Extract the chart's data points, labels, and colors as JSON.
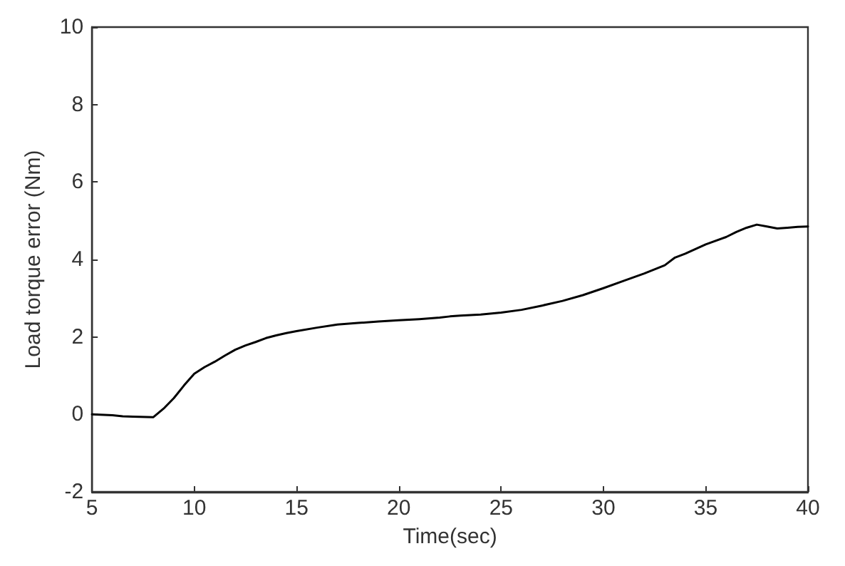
{
  "chart_data": {
    "type": "line",
    "xlabel": "Time(sec)",
    "ylabel": "Load torque error (Nm)",
    "x": [
      5,
      6,
      6.5,
      7,
      8,
      8.5,
      9,
      9.5,
      10,
      10.5,
      11,
      11.5,
      12,
      12.5,
      13,
      13.5,
      14,
      14.5,
      15,
      16,
      17,
      18,
      19,
      20,
      21,
      22,
      22.5,
      23,
      24,
      25,
      26,
      27,
      28,
      29,
      30,
      31,
      32,
      33,
      33.5,
      34,
      35,
      36,
      36.5,
      37,
      37.5,
      38,
      38.5,
      39,
      39.5,
      40
    ],
    "series": [
      {
        "color": "#000000",
        "values": [
          0,
          -0.02,
          -0.05,
          -0.06,
          -0.07,
          0.15,
          0.42,
          0.75,
          1.05,
          1.22,
          1.36,
          1.52,
          1.67,
          1.78,
          1.87,
          1.97,
          2.04,
          2.1,
          2.15,
          2.24,
          2.32,
          2.36,
          2.4,
          2.43,
          2.46,
          2.5,
          2.53,
          2.55,
          2.58,
          2.63,
          2.7,
          2.81,
          2.93,
          3.08,
          3.26,
          3.45,
          3.64,
          3.85,
          4.05,
          4.15,
          4.39,
          4.58,
          4.71,
          4.82,
          4.9,
          4.85,
          4.8,
          4.82,
          4.84,
          4.85
        ]
      }
    ],
    "xlim": [
      5,
      40
    ],
    "xticks": [
      5,
      10,
      15,
      20,
      25,
      30,
      35,
      40
    ],
    "ylim": [
      -2,
      10
    ],
    "yticks": [
      -2,
      0,
      2,
      4,
      6,
      8,
      10
    ],
    "grid": false,
    "marker": "none",
    "line_style": "solid"
  }
}
